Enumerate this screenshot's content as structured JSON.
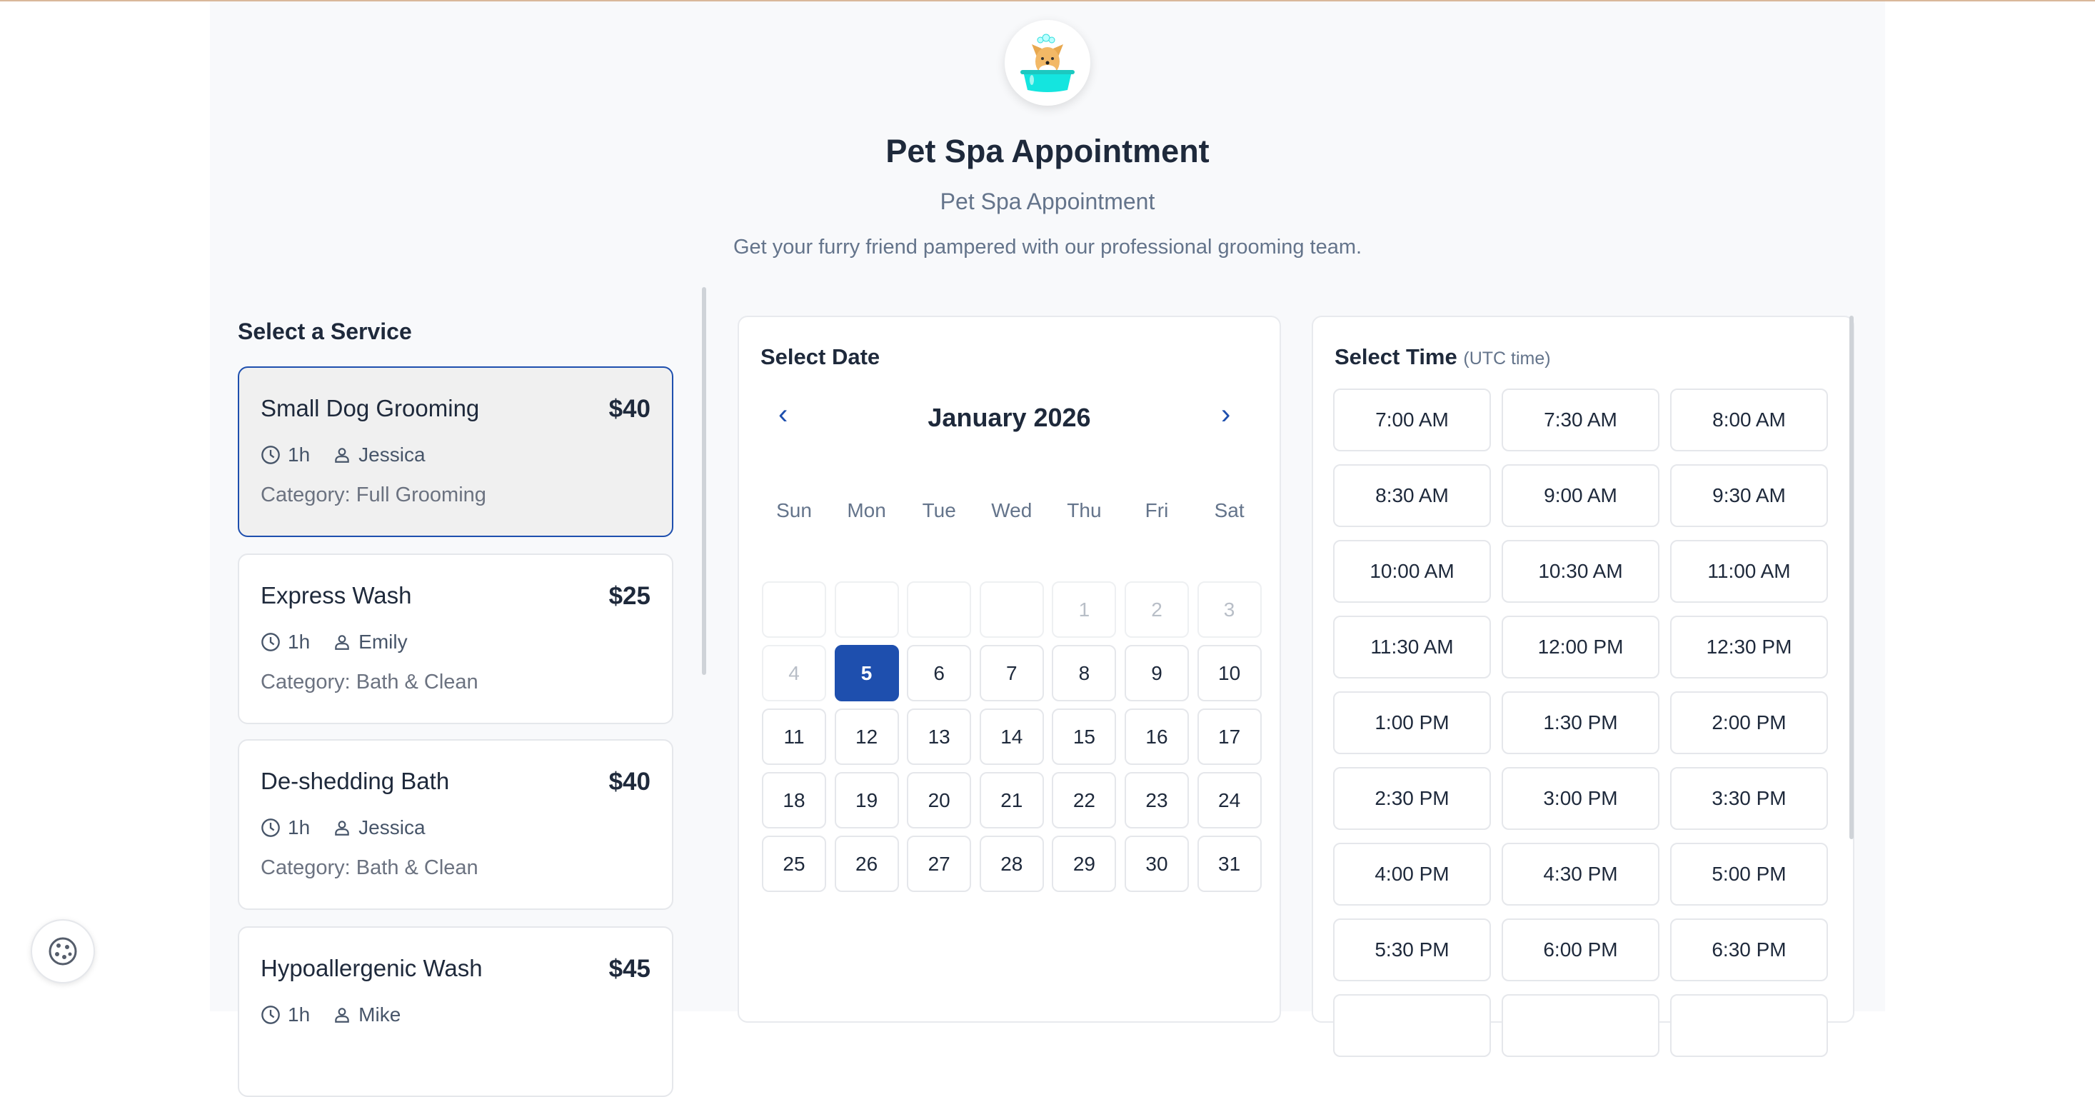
{
  "header": {
    "title": "Pet Spa Appointment",
    "subtitle": "Pet Spa Appointment",
    "description": "Get your furry friend pampered with our professional grooming team."
  },
  "services": {
    "heading": "Select a Service",
    "items": [
      {
        "name": "Small Dog Grooming",
        "price": "$40",
        "duration": "1h",
        "staff": "Jessica",
        "category": "Category: Full Grooming",
        "selected": true
      },
      {
        "name": "Express Wash",
        "price": "$25",
        "duration": "1h",
        "staff": "Emily",
        "category": "Category: Bath & Clean",
        "selected": false
      },
      {
        "name": "De-shedding Bath",
        "price": "$40",
        "duration": "1h",
        "staff": "Jessica",
        "category": "Category: Bath & Clean",
        "selected": false
      },
      {
        "name": "Hypoallergenic Wash",
        "price": "$45",
        "duration": "1h",
        "staff": "Mike",
        "category": "",
        "selected": false
      }
    ]
  },
  "calendar": {
    "heading": "Select Date",
    "month": "January 2026",
    "weekdays": [
      "Sun",
      "Mon",
      "Tue",
      "Wed",
      "Thu",
      "Fri",
      "Sat"
    ],
    "leading_blanks": 4,
    "days_in_month": 31,
    "disabled_through": 4,
    "selected_day": 5
  },
  "time": {
    "heading": "Select Time",
    "note": "(UTC time)",
    "slots": [
      "7:00 AM",
      "7:30 AM",
      "8:00 AM",
      "8:30 AM",
      "9:00 AM",
      "9:30 AM",
      "10:00 AM",
      "10:30 AM",
      "11:00 AM",
      "11:30 AM",
      "12:00 PM",
      "12:30 PM",
      "1:00 PM",
      "1:30 PM",
      "2:00 PM",
      "2:30 PM",
      "3:00 PM",
      "3:30 PM",
      "4:00 PM",
      "4:30 PM",
      "5:00 PM",
      "5:30 PM",
      "6:00 PM",
      "6:30 PM"
    ]
  },
  "colors": {
    "accent": "#1e4fae",
    "text": "#1e293b",
    "muted": "#64748b"
  }
}
